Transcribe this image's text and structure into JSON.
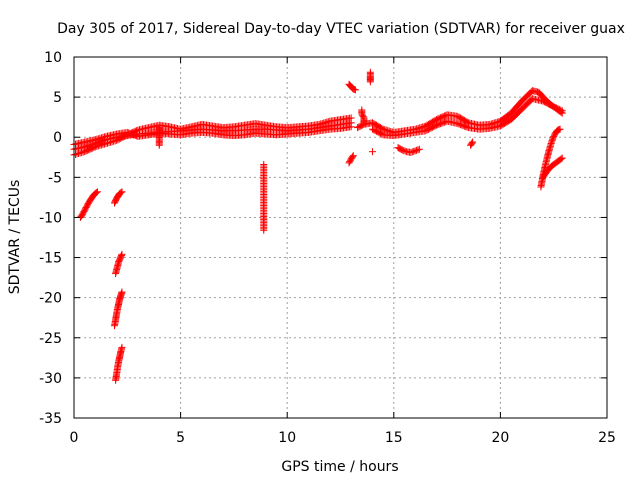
{
  "chart_data": {
    "type": "scatter",
    "title": "Day 305 of 2017, Sidereal Day-to-day VTEC variation (SDTVAR) for receiver guax",
    "xlabel": "GPS time / hours",
    "ylabel": "SDTVAR / TECUs",
    "xlim": [
      0,
      25
    ],
    "ylim": [
      -35,
      10
    ],
    "xticks": [
      0,
      5,
      10,
      15,
      20,
      25
    ],
    "yticks": [
      10,
      5,
      0,
      -5,
      -10,
      -15,
      -20,
      -25,
      -30,
      -35
    ],
    "grid": true,
    "marker": "+",
    "color": "#ff0000",
    "series": [
      {
        "name": "SDTVAR",
        "segments": [
          {
            "x": [
              0.0,
              0.5,
              1.0,
              1.5,
              2.0,
              2.5,
              3.0,
              3.5,
              4.0,
              4.5,
              5.0,
              5.5,
              6.0,
              6.5,
              7.0,
              7.5,
              8.0,
              8.5,
              9.0,
              9.5,
              10.0,
              10.5,
              11.0,
              11.5,
              12.0,
              12.5,
              13.0
            ],
            "y": [
              -1.5,
              -1.2,
              -0.8,
              -0.3,
              0.0,
              0.2,
              0.4,
              0.5,
              0.6,
              0.7,
              0.8,
              0.9,
              1.0,
              0.9,
              0.8,
              0.8,
              0.9,
              1.0,
              1.0,
              0.9,
              0.8,
              0.9,
              1.0,
              1.2,
              1.4,
              1.6,
              1.8
            ]
          },
          {
            "x": [
              0.0,
              0.5,
              1.0,
              1.5,
              2.0,
              2.5,
              3.0,
              3.5,
              4.0,
              4.5,
              5.0,
              5.5,
              6.0,
              6.5,
              7.0,
              7.5,
              8.0,
              8.5,
              9.0,
              9.5,
              10.0,
              10.5,
              11.0,
              11.5,
              12.0,
              12.5,
              13.0
            ],
            "y": [
              -2.2,
              -1.8,
              -1.2,
              -0.8,
              -0.4,
              0.3,
              0.9,
              1.2,
              1.5,
              1.3,
              1.0,
              1.3,
              1.6,
              1.4,
              1.2,
              1.3,
              1.5,
              1.7,
              1.5,
              1.3,
              1.2,
              1.3,
              1.4,
              1.6,
              2.0,
              2.2,
              2.4
            ]
          },
          {
            "x": [
              0.0,
              0.5,
              1.0,
              1.5,
              2.0,
              2.5,
              3.0,
              3.5,
              4.0,
              4.5,
              5.0,
              5.5,
              6.0,
              6.5,
              7.0,
              7.5,
              8.0,
              8.5,
              9.0,
              9.5,
              10.0,
              10.5,
              11.0,
              11.5,
              12.0,
              12.5,
              13.0
            ],
            "y": [
              -0.9,
              -0.6,
              -0.3,
              0.1,
              0.4,
              0.6,
              0.1,
              0.3,
              0.5,
              0.4,
              0.3,
              0.5,
              0.6,
              0.5,
              0.3,
              0.2,
              0.3,
              0.5,
              0.4,
              0.3,
              0.4,
              0.5,
              0.6,
              0.8,
              1.0,
              1.1,
              1.3
            ]
          },
          {
            "x": [
              0.3,
              0.4,
              0.5,
              0.6,
              0.7,
              0.8,
              0.9,
              1.0,
              1.1
            ],
            "y": [
              -10.0,
              -9.6,
              -9.1,
              -8.6,
              -8.1,
              -7.7,
              -7.3,
              -7.0,
              -6.8
            ]
          },
          {
            "x": [
              1.9,
              1.95,
              2.0,
              2.05,
              2.1,
              2.15,
              2.2,
              2.25
            ],
            "y": [
              -8.2,
              -7.9,
              -7.6,
              -7.4,
              -7.2,
              -7.0,
              -6.9,
              -6.8
            ]
          },
          {
            "x": [
              1.95,
              2.0,
              2.05,
              2.1,
              2.15,
              2.2,
              2.25
            ],
            "y": [
              -17.0,
              -16.5,
              -16.0,
              -15.5,
              -15.2,
              -14.9,
              -14.6
            ]
          },
          {
            "x": [
              1.9,
              1.95,
              2.0,
              2.05,
              2.1,
              2.15,
              2.2,
              2.25
            ],
            "y": [
              -23.5,
              -22.8,
              -22.0,
              -21.3,
              -20.7,
              -20.1,
              -19.7,
              -19.3
            ]
          },
          {
            "x": [
              1.95,
              2.0,
              2.05,
              2.1,
              2.15,
              2.2,
              2.25
            ],
            "y": [
              -30.3,
              -29.5,
              -28.6,
              -27.9,
              -27.3,
              -26.7,
              -26.2
            ]
          },
          {
            "x": [
              4.0,
              4.0,
              4.0,
              4.0
            ],
            "y": [
              1.2,
              0.8,
              -0.2,
              -1.0
            ]
          },
          {
            "x": [
              8.9,
              8.9,
              8.9
            ],
            "y": [
              -3.4,
              -9.7,
              -11.6
            ]
          },
          {
            "x": [
              12.9,
              13.0,
              13.1,
              13.2
            ],
            "y": [
              6.6,
              6.3,
              6.0,
              5.9
            ]
          },
          {
            "x": [
              12.9,
              13.0,
              13.1
            ],
            "y": [
              -3.2,
              -2.7,
              -2.3
            ]
          },
          {
            "x": [
              13.5,
              13.5,
              13.6,
              13.6
            ],
            "y": [
              3.4,
              2.9,
              2.4,
              1.8
            ]
          },
          {
            "x": [
              13.9,
              13.9,
              13.9,
              13.9
            ],
            "y": [
              8.1,
              7.6,
              7.2,
              6.9
            ]
          },
          {
            "x": [
              14.0
            ],
            "y": [
              -1.8
            ]
          },
          {
            "x": [
              13.3,
              13.6,
              14.0,
              14.5,
              15.0,
              15.5,
              16.0,
              16.5,
              17.0,
              17.5,
              18.0,
              18.5,
              19.0,
              19.5,
              20.0,
              20.5,
              21.0,
              21.5,
              21.8,
              22.0,
              22.3,
              22.6,
              22.9
            ],
            "y": [
              1.2,
              1.6,
              1.8,
              1.0,
              0.6,
              0.8,
              1.0,
              1.4,
              2.2,
              2.8,
              2.6,
              1.8,
              1.5,
              1.6,
              2.0,
              3.0,
              4.5,
              5.8,
              5.6,
              5.0,
              4.2,
              3.6,
              3.0
            ]
          },
          {
            "x": [
              14.0,
              14.5,
              15.0,
              15.5,
              16.0,
              16.5,
              17.0,
              17.5,
              18.0,
              18.5,
              19.0,
              19.5,
              20.0,
              20.5,
              21.0,
              21.5,
              22.0,
              22.5,
              22.9
            ],
            "y": [
              1.0,
              0.3,
              0.2,
              0.4,
              0.6,
              0.8,
              1.5,
              2.0,
              1.7,
              1.2,
              1.0,
              1.1,
              1.4,
              2.2,
              3.5,
              4.8,
              4.5,
              3.8,
              3.3
            ]
          },
          {
            "x": [
              15.2,
              15.4,
              15.6,
              15.8,
              16.0,
              16.2
            ],
            "y": [
              -1.3,
              -1.6,
              -1.8,
              -1.9,
              -1.7,
              -1.5
            ]
          },
          {
            "x": [
              18.6,
              18.7
            ],
            "y": [
              -1.0,
              -0.6
            ]
          },
          {
            "x": [
              21.9,
              22.0,
              22.1,
              22.2,
              22.3,
              22.4,
              22.5,
              22.6,
              22.7,
              22.8
            ],
            "y": [
              -6.2,
              -4.8,
              -3.6,
              -2.5,
              -1.5,
              -0.6,
              0.1,
              0.6,
              0.9,
              1.0
            ]
          },
          {
            "x": [
              22.0,
              22.2,
              22.4,
              22.6,
              22.8,
              22.9
            ],
            "y": [
              -5.0,
              -4.2,
              -3.6,
              -3.2,
              -2.8,
              -2.6
            ]
          }
        ]
      }
    ]
  }
}
